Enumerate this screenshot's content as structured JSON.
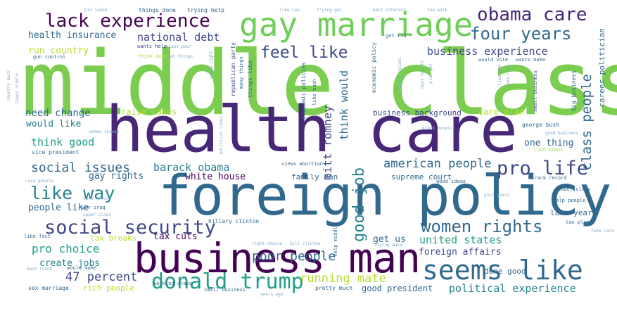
{
  "cloud": {
    "big": {
      "middle_class": "middle class",
      "health_care": "health care",
      "foreign_policy": "foreign policy",
      "business_man": "business man",
      "gay_marriage": "gay marriage",
      "seems_like": "seems like",
      "lack_experience": "lack experience",
      "social_security": "social security",
      "donald_trump": "donald trump",
      "pro_life": "pro life",
      "obama_care": "obama care",
      "four_years": "four years",
      "women_rights": "women rights",
      "like_way": "like way",
      "feel_like": "feel like",
      "good_job": "good job",
      "class_people": "class people",
      "social_issues": "social issues",
      "american_people": "american people",
      "barack_obama": "barack obama",
      "poor_people": "poor people",
      "pro_choice": "pro choice",
      "percent_47": "47 percent",
      "running_mate": "running mate",
      "mitt_romney": "mitt romney",
      "think_would": "think would",
      "united_states": "united states",
      "political_experience": "political experience",
      "business_experience": "business experience",
      "health_insurance": "health insurance",
      "national_debt": "national debt",
      "think_good": "think good",
      "need_change": "need change",
      "would_like": "would like",
      "white_house": "white house",
      "gay_rights": "gay rights",
      "people_like": "people like",
      "create_jobs": "create jobs",
      "tax_cuts": "tax cuts",
      "tax_breaks": "tax breaks",
      "rich_people": "rich people",
      "foreign_affairs": "foreign affairs",
      "get_us": "get us",
      "supreme_court": "supreme court",
      "family_man": "family man",
      "one_thing": "one thing",
      "care_plan": "care plan",
      "raise_taxes": "raise taxes",
      "business_background": "business background",
      "done_good": "done good",
      "good_president": "good president",
      "last_years": "last years",
      "career_politician": "career politician",
      "run_country": "run country"
    },
    "small": {
      "things_done": "things done",
      "trying_help": "trying help",
      "bin_laden": "bin laden",
      "like_see": "like see",
      "trying_get": "trying get",
      "best_interest": "best interest",
      "tea_walk": "tea walk",
      "gun_control": "gun control",
      "wants_help": "wants help",
      "class_poor": "class poor",
      "think_done": "think done",
      "get_things": "get things",
      "republican_party": "republican party",
      "things_like": "things like",
      "many_things": "many things",
      "like_bush": "like bush",
      "economic_policies": "economic policies",
      "economic_policy": "economic policy",
      "get_rid": "get rid",
      "would_vote": "would vote",
      "wants_make": "wants make",
      "big_business": "big business",
      "small_business": "small business",
      "george_bush": "george bush",
      "good_business": "good business",
      "vice_president": "vice president",
      "like_views": "like views",
      "views_abortion": "views abortion",
      "good_ideas": "good ideas",
      "track_record": "track record",
      "lower_class": "lower class",
      "help_people": "help people",
      "tax_plan": "tax plan",
      "war_iraq": "war iraq",
      "upper_class": "upper class",
      "hillary_clinton": "hillary clinton",
      "like_fact": "like fact",
      "right_choice": "right choice",
      "bill_clinton": "bill clinton",
      "trying_make": "trying make",
      "help_middle": "help middle",
      "working_class": "working class",
      "pretty_much": "pretty much",
      "would_make": "would make",
      "sex_marriage": "sex marriage",
      "back_track": "back track",
      "years_ago": "years ago",
      "past_years": "past years",
      "take_care": "take care",
      "care_reform": "care reform",
      "care_people": "care people",
      "women_issues": "women issues",
      "black_honest": "black honest",
      "country_back": "country back",
      "political_views": "political views",
      "family_values": "family values",
      "mass_health": "mass health",
      "plan_get": "plan get",
      "like_man": "like man",
      "seem_care": "seem care",
      "taxes_middle": "taxes middle",
      "women_right": "women right"
    }
  },
  "palette": {
    "dark_purple": "#440154",
    "purple": "#482777",
    "indigo": "#3e4989",
    "blue": "#31688e",
    "teal_blue": "#26828e",
    "teal": "#1f9e89",
    "sea_green": "#35b779",
    "green": "#6ece58",
    "lime": "#b5de2b",
    "yellow": "#fde725",
    "light_green": "#a6d96a",
    "pale_blue": "#7fa9c9"
  }
}
